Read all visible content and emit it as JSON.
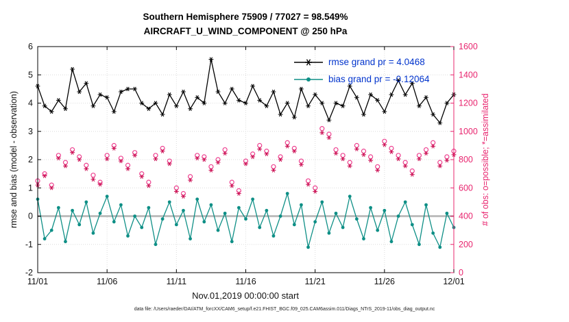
{
  "header": {
    "title_line1": "Southern Hemisphere 75909 / 77027 = 98.549%",
    "title_line2": "AIRCRAFT_U_WIND_COMPONENT @ 250 hPa"
  },
  "legend": {
    "rmse_label": "rmse grand pr = 4.0468",
    "bias_label": "bias grand pr = -0.12064",
    "text_color": "#0033cc"
  },
  "footer": {
    "data_file": "data file: /Users/raeder/DAI/ATM_forcXX/CAM6_setup/f.e21.FHIST_BGC.f09_025.CAM6assim.011/Diags_NTrS_2019-11/obs_diag_output.nc"
  },
  "chart_data": {
    "type": "line",
    "title": "Southern Hemisphere 75909 / 77027 = 98.549%",
    "subtitle": "AIRCRAFT_U_WIND_COMPONENT @ 250 hPa",
    "xlabel": "Nov.01,2019 00:00:00 start",
    "ylabel_left": "rmse and bias (model - observation)",
    "ylabel_right": "# of obs: o=possible; *=assimilated",
    "x_ticks": [
      "11/01",
      "11/06",
      "11/11",
      "11/16",
      "11/21",
      "11/26",
      "12/01"
    ],
    "x_tick_days": [
      0,
      5,
      10,
      15,
      20,
      25,
      30
    ],
    "x_range_days": [
      0,
      30
    ],
    "x_start": 0,
    "x_step_days": 0.5,
    "ylim_left": [
      -2,
      6
    ],
    "left_ticks": [
      -2,
      -1,
      0,
      1,
      2,
      3,
      4,
      5,
      6
    ],
    "ylim_right": [
      0,
      1600
    ],
    "right_ticks": [
      0,
      200,
      400,
      600,
      800,
      1000,
      1200,
      1400,
      1600
    ],
    "grid": true,
    "legend_position": "top-right-inside",
    "zero_line": {
      "value": 0,
      "color": "#bdbdbd"
    },
    "colors": {
      "rmse": "#000000",
      "bias": "#0e8f86",
      "possible": "#ee3f8f",
      "assimilated": "#cc1155",
      "right_axis": "#e8246e",
      "grid": "#dcdcdc"
    },
    "series": [
      {
        "name": "rmse",
        "axis": "left",
        "marker": "asterisk",
        "line": true,
        "color": "#000000",
        "values": [
          4.6,
          3.9,
          3.7,
          4.1,
          3.8,
          5.2,
          4.4,
          4.7,
          3.9,
          4.3,
          4.2,
          3.7,
          4.4,
          4.5,
          4.5,
          4.0,
          3.8,
          4.0,
          3.6,
          4.3,
          3.9,
          4.4,
          3.8,
          4.2,
          4.0,
          5.55,
          4.4,
          4.0,
          4.5,
          4.1,
          4.0,
          4.6,
          4.1,
          3.9,
          4.4,
          3.6,
          4.0,
          3.5,
          4.5,
          3.9,
          4.3,
          4.0,
          3.4,
          4.0,
          3.9,
          4.6,
          4.2,
          3.6,
          4.3,
          4.1,
          3.7,
          4.3,
          4.8,
          4.3,
          4.7,
          3.9,
          4.2,
          3.6,
          3.3,
          4.0,
          4.3
        ]
      },
      {
        "name": "bias",
        "axis": "left",
        "marker": "dot",
        "line": true,
        "color": "#0e8f86",
        "values": [
          0.6,
          -0.8,
          -0.5,
          0.3,
          -0.9,
          0.2,
          -0.3,
          0.5,
          -0.6,
          0.1,
          0.7,
          -0.2,
          0.4,
          -0.7,
          0.0,
          -0.4,
          0.3,
          -1.0,
          -0.1,
          0.5,
          -0.3,
          0.2,
          -0.8,
          0.6,
          -0.2,
          0.4,
          -0.5,
          0.1,
          -0.9,
          0.3,
          -0.1,
          0.6,
          -0.4,
          0.2,
          -0.7,
          0.0,
          0.8,
          -0.3,
          0.4,
          -1.1,
          -0.2,
          0.5,
          -0.6,
          0.1,
          -0.4,
          0.7,
          -0.1,
          -0.8,
          0.3,
          -0.5,
          0.2,
          -0.9,
          0.0,
          0.5,
          -0.3,
          -1.0,
          0.4,
          -0.6,
          -1.1,
          0.1,
          -0.4
        ]
      },
      {
        "name": "possible",
        "axis": "right",
        "marker": "open-circle",
        "line": false,
        "color": "#ee3f8f",
        "values": [
          650,
          700,
          620,
          830,
          780,
          870,
          820,
          760,
          690,
          640,
          830,
          900,
          810,
          760,
          850,
          700,
          640,
          830,
          880,
          790,
          600,
          560,
          680,
          830,
          820,
          750,
          800,
          870,
          640,
          580,
          790,
          840,
          900,
          860,
          750,
          820,
          920,
          880,
          790,
          650,
          600,
          1020,
          980,
          870,
          830,
          780,
          900,
          860,
          820,
          750,
          930,
          880,
          830,
          780,
          720,
          830,
          870,
          920,
          780,
          820,
          860
        ]
      },
      {
        "name": "assimilated",
        "axis": "right",
        "marker": "asterisk",
        "line": false,
        "color": "#cc1155",
        "values": [
          620,
          685,
          600,
          810,
          755,
          850,
          800,
          735,
          660,
          625,
          805,
          880,
          790,
          735,
          830,
          680,
          615,
          805,
          860,
          770,
          575,
          540,
          655,
          810,
          800,
          725,
          780,
          845,
          615,
          560,
          770,
          820,
          875,
          840,
          725,
          800,
          895,
          860,
          765,
          625,
          575,
          990,
          955,
          845,
          805,
          755,
          875,
          835,
          795,
          725,
          905,
          855,
          805,
          755,
          695,
          805,
          845,
          895,
          755,
          795,
          835
        ]
      }
    ]
  }
}
